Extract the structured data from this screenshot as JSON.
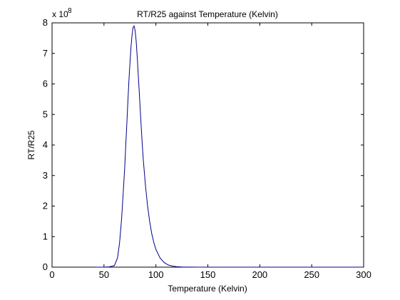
{
  "chart_data": {
    "type": "line",
    "title": "RT/R25 against Temperature (Kelvin)",
    "xlabel": "Temperature (Kelvin)",
    "ylabel": "RT/R25",
    "y_multiplier_label": "x 10",
    "y_multiplier_exponent": "8",
    "xlim": [
      0,
      300
    ],
    "ylim": [
      0,
      8
    ],
    "xticks": [
      0,
      50,
      100,
      150,
      200,
      250,
      300
    ],
    "yticks": [
      0,
      1,
      2,
      3,
      4,
      5,
      6,
      7,
      8
    ],
    "grid": false,
    "line_color": "#00008B",
    "series": [
      {
        "x": [
          42,
          50,
          55,
          60,
          63,
          65,
          67,
          69,
          70,
          71,
          72,
          73,
          74,
          75,
          76,
          77,
          78,
          79,
          80,
          81,
          82,
          83,
          84,
          85,
          86,
          87,
          88,
          90,
          92,
          94,
          96,
          98,
          100,
          104,
          108,
          112,
          116,
          120,
          125,
          130,
          140,
          150,
          200,
          250,
          300
        ],
        "values": [
          0,
          0,
          0.01,
          0.05,
          0.3,
          0.8,
          1.6,
          2.7,
          3.3,
          4.0,
          4.7,
          5.4,
          6.1,
          6.7,
          7.2,
          7.6,
          7.85,
          7.9,
          7.75,
          7.4,
          6.9,
          6.3,
          5.7,
          5.1,
          4.5,
          3.95,
          3.45,
          2.65,
          2.0,
          1.5,
          1.1,
          0.8,
          0.58,
          0.3,
          0.15,
          0.07,
          0.035,
          0.015,
          0.005,
          0.002,
          0.0005,
          0,
          0,
          0,
          0
        ]
      }
    ]
  }
}
